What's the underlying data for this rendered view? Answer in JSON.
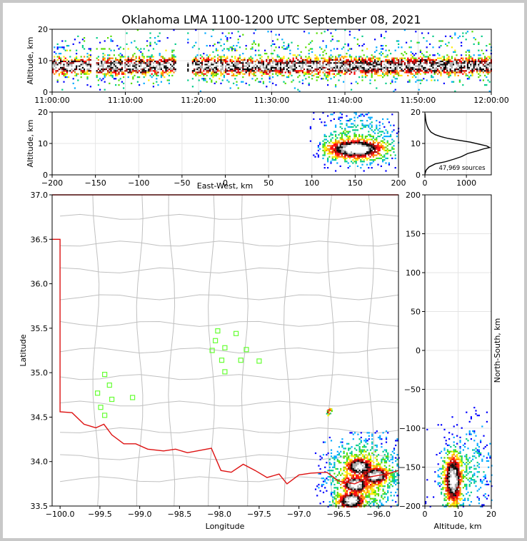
{
  "title": "Oklahoma LMA 1100-1200 UTC September 08, 2021",
  "sources_label": "47,969 sources",
  "colors": {
    "state_border": "#dd1111",
    "county_lines": "#c0c0c0",
    "station_marker": "#66ff33",
    "density_ramp": [
      "#0000ff",
      "#00aaff",
      "#00cc88",
      "#55dd00",
      "#ffee00",
      "#ff8800",
      "#ff0000",
      "#990000",
      "#000000",
      "#aaaaaa",
      "#ffffff"
    ]
  },
  "chart_data": [
    {
      "type": "heatmap",
      "id": "time-altitude",
      "xlabel": "",
      "ylabel": "Altitude, km",
      "xlim": [
        "11:00:00",
        "12:00:00"
      ],
      "ylim": [
        0,
        20
      ],
      "x_ticks": [
        "11:00:00",
        "11:10:00",
        "11:20:00",
        "11:30:00",
        "11:40:00",
        "11:50:00",
        "12:00:00"
      ],
      "y_ticks": [
        "0",
        "10",
        "20"
      ],
      "core_altitude_km": [
        5,
        12
      ],
      "data_gaps_minutes": [
        [
          5.0,
          5.8
        ],
        [
          16.8,
          19.0
        ]
      ]
    },
    {
      "type": "heatmap",
      "id": "east-west-altitude",
      "xlabel": "East-West, km",
      "ylabel": "Altitude, km",
      "xlim": [
        -200,
        200
      ],
      "ylim": [
        0,
        20
      ],
      "x_ticks": [
        "−200",
        "−150",
        "−100",
        "−50",
        "0",
        "50",
        "100",
        "150",
        "200"
      ],
      "y_ticks": [
        "0",
        "10",
        "20"
      ],
      "densest_center": {
        "x_km": 150,
        "alt_km": 8.5
      },
      "extent_x_km": [
        100,
        200
      ]
    },
    {
      "type": "line",
      "id": "altitude-histogram",
      "xlabel": "",
      "ylabel": "",
      "xlim": [
        0,
        1600
      ],
      "ylim": [
        0,
        20
      ],
      "x_ticks": [
        "0",
        "1000"
      ],
      "y_ticks": [
        "0",
        "10",
        "20"
      ],
      "points": [
        [
          0,
          0.2
        ],
        [
          30,
          1.5
        ],
        [
          100,
          2.5
        ],
        [
          250,
          3.5
        ],
        [
          500,
          4.2
        ],
        [
          700,
          5
        ],
        [
          880,
          5.8
        ],
        [
          1030,
          6.8
        ],
        [
          1250,
          7.6
        ],
        [
          1420,
          8.3
        ],
        [
          1560,
          8.7
        ],
        [
          1490,
          9.2
        ],
        [
          1300,
          9.8
        ],
        [
          1100,
          10.4
        ],
        [
          820,
          11
        ],
        [
          560,
          11.6
        ],
        [
          380,
          12.2
        ],
        [
          250,
          12.8
        ],
        [
          150,
          13.6
        ],
        [
          90,
          14.6
        ],
        [
          55,
          15.6
        ],
        [
          30,
          16.8
        ],
        [
          15,
          18
        ],
        [
          5,
          19.5
        ]
      ]
    },
    {
      "type": "heatmap",
      "id": "plan-view",
      "xlabel": "Longitude",
      "ylabel": "Latitude",
      "xlim": [
        -100.1,
        -95.75
      ],
      "ylim": [
        33.5,
        37.0
      ],
      "x_ticks": [
        "−100.0",
        "−99.5",
        "−99.0",
        "−98.5",
        "−98.0",
        "−97.5",
        "−97.0",
        "−96.5",
        "−96.0"
      ],
      "y_ticks": [
        "33.5",
        "34.0",
        "34.5",
        "35.0",
        "35.5",
        "36.0",
        "36.5",
        "37.0"
      ],
      "stations": [
        [
          -98.02,
          35.47
        ],
        [
          -97.79,
          35.44
        ],
        [
          -98.05,
          35.36
        ],
        [
          -98.09,
          35.25
        ],
        [
          -97.93,
          35.28
        ],
        [
          -97.66,
          35.26
        ],
        [
          -97.97,
          35.14
        ],
        [
          -97.73,
          35.14
        ],
        [
          -97.5,
          35.13
        ],
        [
          -97.93,
          35.01
        ],
        [
          -99.44,
          34.98
        ],
        [
          -99.38,
          34.86
        ],
        [
          -99.53,
          34.77
        ],
        [
          -99.35,
          34.7
        ],
        [
          -99.09,
          34.72
        ],
        [
          -99.49,
          34.61
        ],
        [
          -99.44,
          34.52
        ]
      ],
      "densest_cells": [
        [
          -96.35,
          33.57
        ],
        [
          -96.3,
          33.75
        ],
        [
          -96.05,
          33.85
        ],
        [
          -96.25,
          33.95
        ]
      ]
    },
    {
      "type": "heatmap",
      "id": "altitude-north-south",
      "xlabel": "Altitude, km",
      "ylabel": "North-South, km",
      "xlim": [
        0,
        20
      ],
      "ylim": [
        -200,
        200
      ],
      "x_ticks": [
        "0",
        "10",
        "20"
      ],
      "y_ticks": [
        "−200",
        "−150",
        "−100",
        "−50",
        "0",
        "50",
        "100",
        "150",
        "200"
      ],
      "densest_center": {
        "alt_km": 8.5,
        "ns_km": -160
      },
      "extent_ns_km": [
        -200,
        -75
      ]
    }
  ]
}
